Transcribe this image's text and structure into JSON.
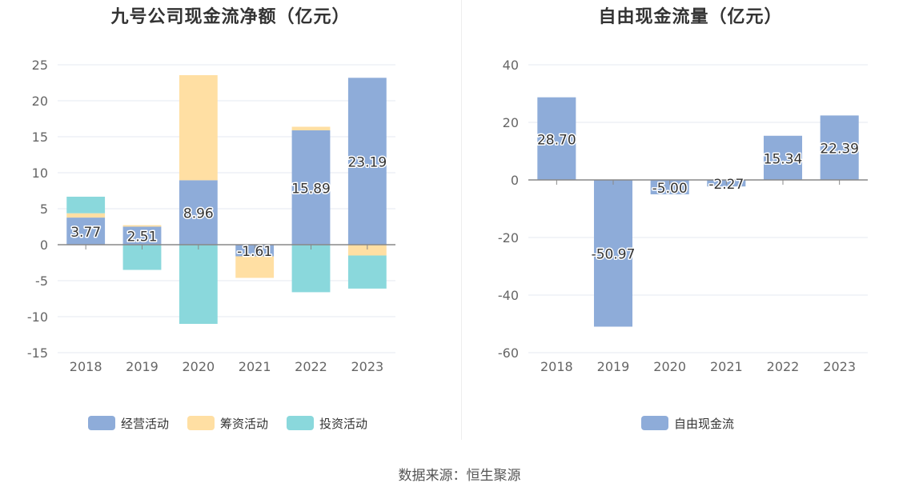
{
  "source_text": "数据来源：恒生聚源",
  "chart_data": [
    {
      "type": "bar",
      "stacked": true,
      "title": "九号公司现金流净额（亿元）",
      "categories": [
        "2018",
        "2019",
        "2020",
        "2021",
        "2022",
        "2023"
      ],
      "ylim": [
        -15,
        25
      ],
      "yticks": [
        25,
        20,
        15,
        10,
        5,
        0,
        -5,
        -10,
        -15
      ],
      "grid": true,
      "legend_position": "bottom-center",
      "series": [
        {
          "name": "经营活动",
          "color": "#8eacd9",
          "values": [
            3.77,
            2.51,
            8.96,
            -1.61,
            15.89,
            23.19
          ],
          "labels": [
            "3.77",
            "2.51",
            "8.96",
            "-1.61",
            "15.89",
            "23.19"
          ]
        },
        {
          "name": "筹资活动",
          "color": "#ffdfa3",
          "values": [
            0.6,
            0.2,
            14.6,
            -3.0,
            0.5,
            -1.5
          ]
        },
        {
          "name": "投资活动",
          "color": "#8ad8dc",
          "values": [
            2.3,
            -3.5,
            -11.0,
            0,
            -6.6,
            -4.6
          ]
        }
      ]
    },
    {
      "type": "bar",
      "title": "自由现金流量（亿元）",
      "categories": [
        "2018",
        "2019",
        "2020",
        "2021",
        "2022",
        "2023"
      ],
      "ylim": [
        -60,
        40
      ],
      "yticks": [
        40,
        20,
        0,
        -20,
        -40,
        -60
      ],
      "grid": true,
      "legend_position": "bottom-center",
      "series": [
        {
          "name": "自由现金流",
          "color": "#8eacd9",
          "values": [
            28.7,
            -50.97,
            -5.0,
            -2.27,
            15.34,
            22.39
          ],
          "labels": [
            "28.70",
            "-50.97",
            "-5.00",
            "-2.27",
            "15.34",
            "22.39"
          ]
        }
      ]
    }
  ]
}
